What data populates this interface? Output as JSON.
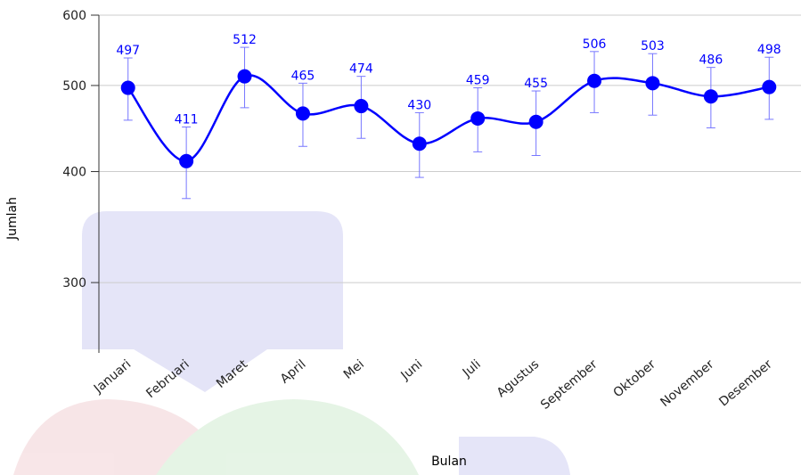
{
  "chart_data": {
    "type": "line",
    "x_label": "Bulan",
    "y_label": "Jumlah",
    "categories": [
      "Januari",
      "Februari",
      "Maret",
      "April",
      "Mei",
      "Juni",
      "Juli",
      "Agustus",
      "September",
      "Oktober",
      "November",
      "Desember"
    ],
    "series": [
      {
        "color": "#0000ff",
        "values": [
          497,
          411,
          512,
          465,
          474,
          430,
          459,
          455,
          506,
          503,
          486,
          498
        ],
        "errors": [
          40,
          38,
          40,
          38,
          38,
          36,
          38,
          38,
          40,
          40,
          38,
          40
        ]
      }
    ],
    "ylim": [
      250,
      600
    ],
    "yticks": [
      300,
      400,
      500,
      600
    ],
    "log_scale": true,
    "grid": true
  }
}
